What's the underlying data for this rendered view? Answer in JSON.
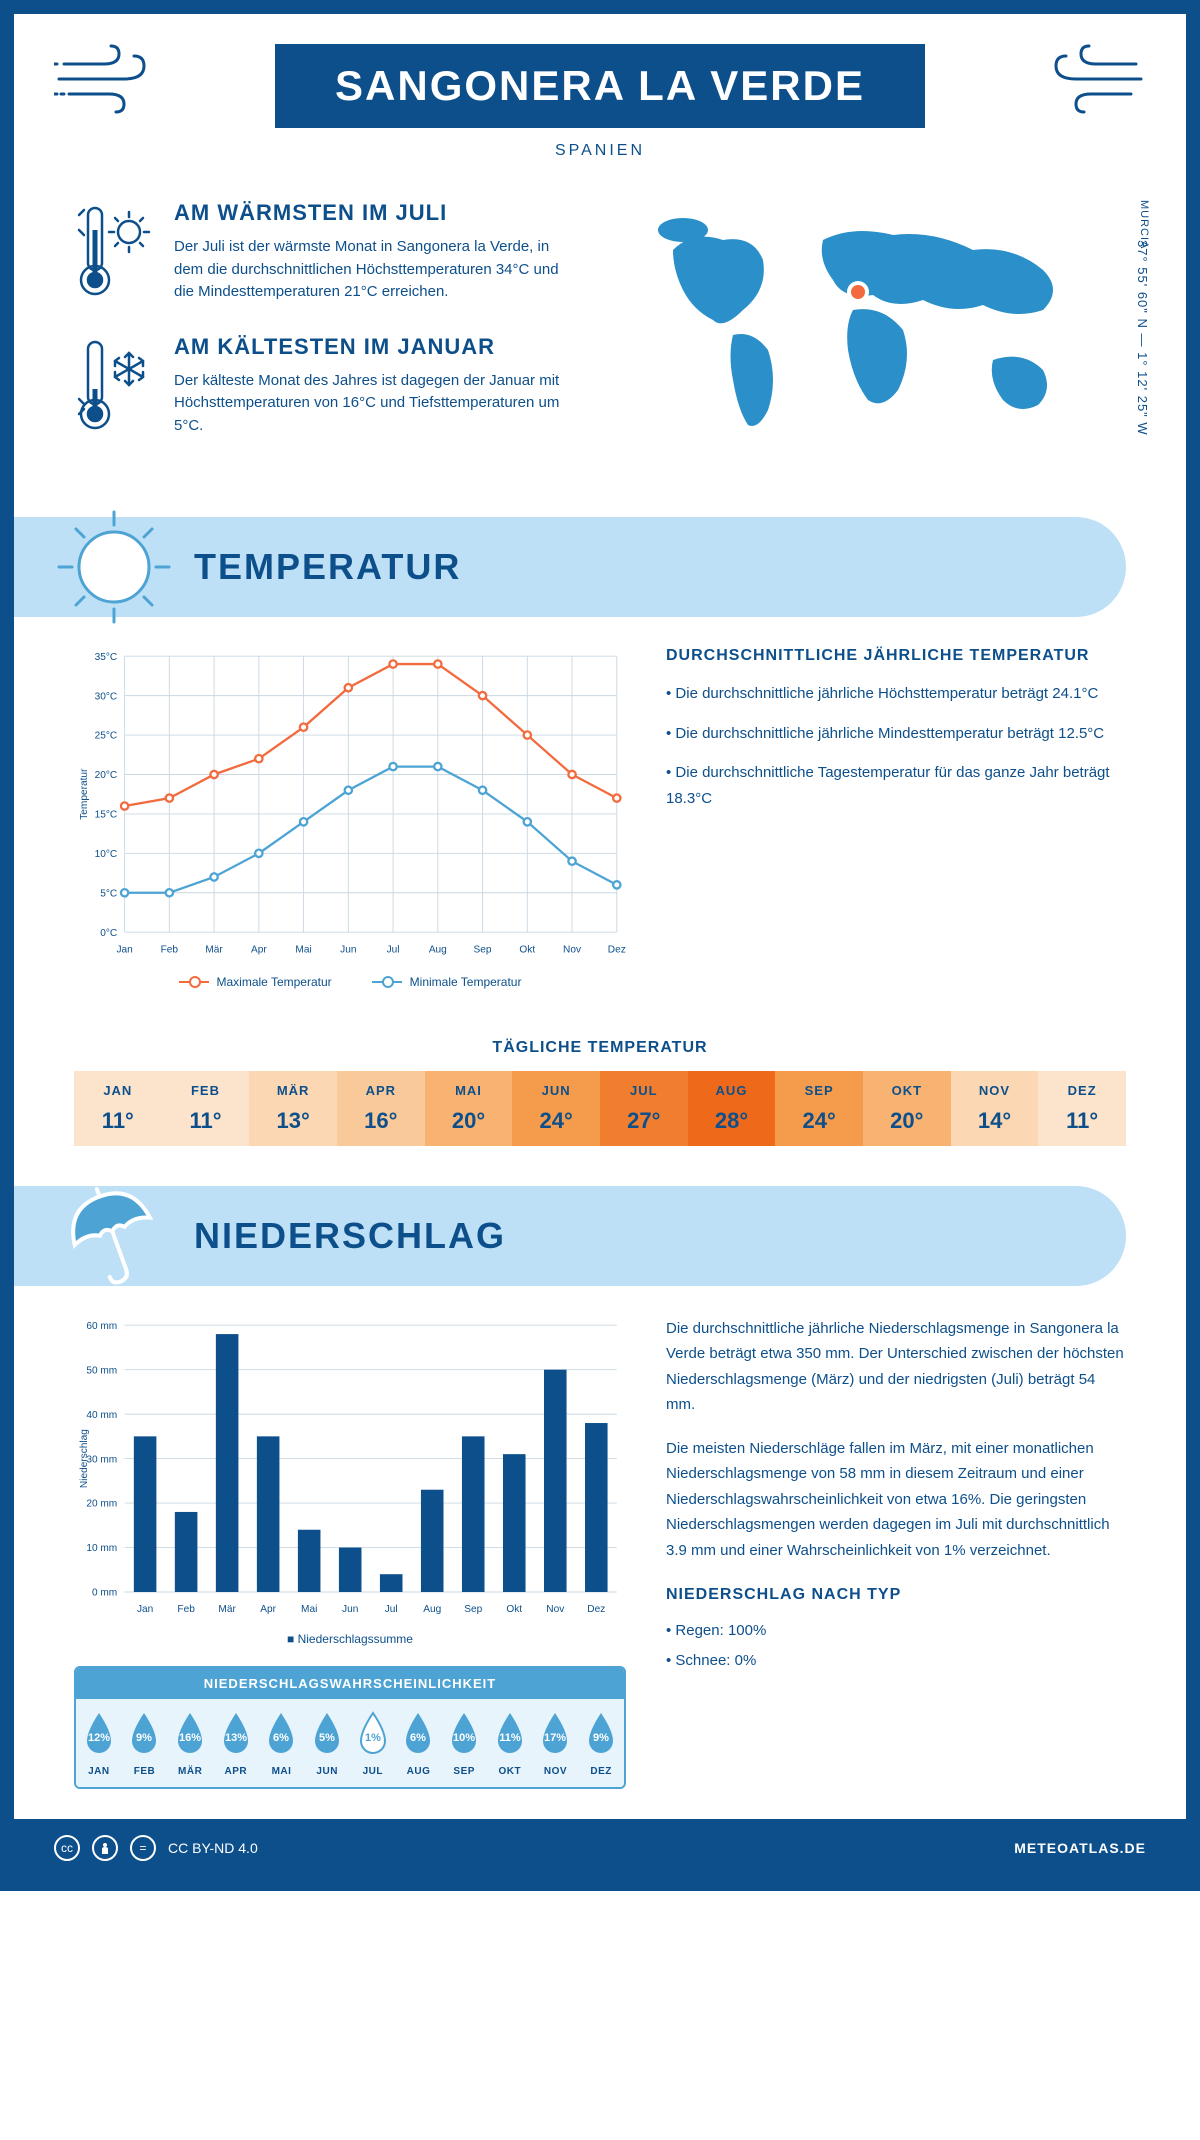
{
  "header": {
    "title": "SANGONERA LA VERDE",
    "subtitle": "SPANIEN",
    "region": "MURCIA",
    "coords": "37° 55' 60\" N — 1° 12' 25\" W"
  },
  "facts": {
    "warm": {
      "title": "AM WÄRMSTEN IM JULI",
      "text": "Der Juli ist der wärmste Monat in Sangonera la Verde, in dem die durchschnittlichen Höchsttemperaturen 34°C und die Mindesttemperaturen 21°C erreichen."
    },
    "cold": {
      "title": "AM KÄLTESTEN IM JANUAR",
      "text": "Der kälteste Monat des Jahres ist dagegen der Januar mit Höchsttemperaturen von 16°C und Tiefsttemperaturen um 5°C."
    }
  },
  "sections": {
    "temperature": "TEMPERATUR",
    "precipitation": "NIEDERSCHLAG"
  },
  "temp_chart": {
    "type": "line",
    "months": [
      "Jan",
      "Feb",
      "Mär",
      "Apr",
      "Mai",
      "Jun",
      "Jul",
      "Aug",
      "Sep",
      "Okt",
      "Nov",
      "Dez"
    ],
    "max": [
      16,
      17,
      20,
      22,
      26,
      31,
      34,
      34,
      30,
      25,
      20,
      17
    ],
    "min": [
      5,
      5,
      7,
      10,
      14,
      18,
      21,
      21,
      18,
      14,
      9,
      6
    ],
    "max_color": "#f26a3d",
    "min_color": "#4da3d4",
    "ylim": [
      0,
      35
    ],
    "ytick_step": 5,
    "ylabel": "Temperatur",
    "grid_color": "#c9d8e3",
    "legend_max": "Maximale Temperatur",
    "legend_min": "Minimale Temperatur"
  },
  "temp_text": {
    "title": "DURCHSCHNITTLICHE JÄHRLICHE TEMPERATUR",
    "p1": "• Die durchschnittliche jährliche Höchsttemperatur beträgt 24.1°C",
    "p2": "• Die durchschnittliche jährliche Mindesttemperatur beträgt 12.5°C",
    "p3": "• Die durchschnittliche Tagestemperatur für das ganze Jahr beträgt 18.3°C"
  },
  "daily_temp": {
    "title": "TÄGLICHE TEMPERATUR",
    "months": [
      "JAN",
      "FEB",
      "MÄR",
      "APR",
      "MAI",
      "JUN",
      "JUL",
      "AUG",
      "SEP",
      "OKT",
      "NOV",
      "DEZ"
    ],
    "values": [
      "11°",
      "11°",
      "13°",
      "16°",
      "20°",
      "24°",
      "27°",
      "28°",
      "24°",
      "20°",
      "14°",
      "11°"
    ],
    "colors": [
      "#fce4cc",
      "#fce4cc",
      "#fbd7b3",
      "#fac999",
      "#f8b272",
      "#f59b4c",
      "#f07e2e",
      "#ee6a1a",
      "#f59b4c",
      "#f8b272",
      "#fbd7b3",
      "#fce4cc"
    ]
  },
  "precip_chart": {
    "type": "bar",
    "months": [
      "Jan",
      "Feb",
      "Mär",
      "Apr",
      "Mai",
      "Jun",
      "Jul",
      "Aug",
      "Sep",
      "Okt",
      "Nov",
      "Dez"
    ],
    "values": [
      35,
      18,
      58,
      35,
      14,
      10,
      4,
      23,
      35,
      31,
      50,
      38
    ],
    "bar_color": "#0d4f8b",
    "ylim": [
      0,
      60
    ],
    "ytick_step": 10,
    "ylabel": "Niederschlag",
    "grid_color": "#c9d8e3",
    "legend": "Niederschlagssumme"
  },
  "precip_text": {
    "p1": "Die durchschnittliche jährliche Niederschlagsmenge in Sangonera la Verde beträgt etwa 350 mm. Der Unterschied zwischen der höchsten Niederschlagsmenge (März) und der niedrigsten (Juli) beträgt 54 mm.",
    "p2": "Die meisten Niederschläge fallen im März, mit einer monatlichen Niederschlagsmenge von 58 mm in diesem Zeitraum und einer Niederschlagswahrscheinlichkeit von etwa 16%. Die geringsten Niederschlagsmengen werden dagegen im Juli mit durchschnittlich 3.9 mm und einer Wahrscheinlichkeit von 1% verzeichnet.",
    "type_title": "NIEDERSCHLAG NACH TYP",
    "type1": "• Regen: 100%",
    "type2": "• Schnee: 0%"
  },
  "prob": {
    "title": "NIEDERSCHLAGSWAHRSCHEINLICHKEIT",
    "months": [
      "JAN",
      "FEB",
      "MÄR",
      "APR",
      "MAI",
      "JUN",
      "JUL",
      "AUG",
      "SEP",
      "OKT",
      "NOV",
      "DEZ"
    ],
    "values": [
      "12%",
      "9%",
      "16%",
      "13%",
      "6%",
      "5%",
      "1%",
      "6%",
      "10%",
      "11%",
      "17%",
      "9%"
    ],
    "highlight_index": 6
  },
  "footer": {
    "license": "CC BY-ND 4.0",
    "brand": "METEOATLAS.DE"
  },
  "colors": {
    "primary": "#0d4f8b",
    "light_blue": "#bde0f7",
    "mid_blue": "#4da3d4",
    "orange": "#f26a3d"
  }
}
